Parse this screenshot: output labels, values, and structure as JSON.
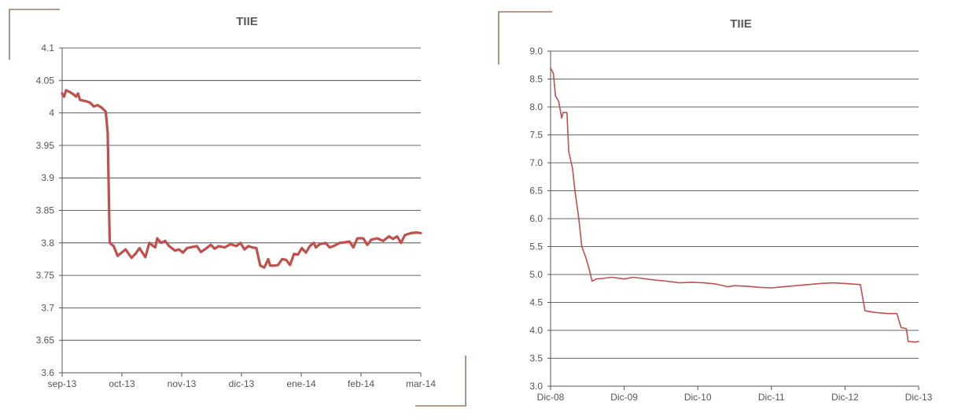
{
  "colors": {
    "series": "#c0504d",
    "corner_marks": "#9c7a66"
  },
  "chart_data": [
    {
      "type": "line",
      "title": "TIIE",
      "xlabel": "",
      "ylabel": "",
      "ylim": [
        3.6,
        4.1
      ],
      "y_ticks": [
        "3.6",
        "3.65",
        "3.7",
        "3.75",
        "3.8",
        "3.85",
        "3.9",
        "3.95",
        "4",
        "4.05",
        "4.1"
      ],
      "x_ticks": [
        "sep-13",
        "oct-13",
        "nov-13",
        "dic-13",
        "ene-14",
        "feb-14",
        "mar-14"
      ],
      "xlim": [
        "2013-09-01",
        "2014-03-01"
      ],
      "grid": true,
      "series": [
        {
          "color": "#c0504d",
          "points": [
            [
              "2013-09-01",
              4.03
            ],
            [
              "2013-09-02",
              4.025
            ],
            [
              "2013-09-03",
              4.035
            ],
            [
              "2013-09-05",
              4.032
            ],
            [
              "2013-09-07",
              4.028
            ],
            [
              "2013-09-08",
              4.025
            ],
            [
              "2013-09-09",
              4.03
            ],
            [
              "2013-09-10",
              4.02
            ],
            [
              "2013-09-13",
              4.018
            ],
            [
              "2013-09-15",
              4.016
            ],
            [
              "2013-09-17",
              4.01
            ],
            [
              "2013-09-19",
              4.012
            ],
            [
              "2013-09-21",
              4.008
            ],
            [
              "2013-09-22",
              4.005
            ],
            [
              "2013-09-23",
              4.002
            ],
            [
              "2013-09-24",
              3.97
            ],
            [
              "2013-09-25",
              3.8
            ],
            [
              "2013-09-27",
              3.795
            ],
            [
              "2013-09-29",
              3.78
            ],
            [
              "2013-10-01",
              3.785
            ],
            [
              "2013-10-03",
              3.79
            ],
            [
              "2013-10-06",
              3.777
            ],
            [
              "2013-10-08",
              3.783
            ],
            [
              "2013-10-10",
              3.792
            ],
            [
              "2013-10-13",
              3.778
            ],
            [
              "2013-10-15",
              3.8
            ],
            [
              "2013-10-17",
              3.795
            ],
            [
              "2013-10-18",
              3.793
            ],
            [
              "2013-10-19",
              3.807
            ],
            [
              "2013-10-21",
              3.8
            ],
            [
              "2013-10-23",
              3.803
            ],
            [
              "2013-10-25",
              3.795
            ],
            [
              "2013-10-28",
              3.788
            ],
            [
              "2013-10-30",
              3.79
            ],
            [
              "2013-11-01",
              3.785
            ],
            [
              "2013-11-03",
              3.792
            ],
            [
              "2013-11-06",
              3.794
            ],
            [
              "2013-11-08",
              3.795
            ],
            [
              "2013-11-10",
              3.786
            ],
            [
              "2013-11-12",
              3.79
            ],
            [
              "2013-11-15",
              3.797
            ],
            [
              "2013-11-17",
              3.791
            ],
            [
              "2013-11-19",
              3.795
            ],
            [
              "2013-11-22",
              3.793
            ],
            [
              "2013-11-25",
              3.798
            ],
            [
              "2013-11-28",
              3.795
            ],
            [
              "2013-11-30",
              3.8
            ],
            [
              "2013-12-02",
              3.79
            ],
            [
              "2013-12-04",
              3.795
            ],
            [
              "2013-12-06",
              3.793
            ],
            [
              "2013-12-08",
              3.792
            ],
            [
              "2013-12-10",
              3.765
            ],
            [
              "2013-12-12",
              3.762
            ],
            [
              "2013-12-14",
              3.775
            ],
            [
              "2013-12-15",
              3.765
            ],
            [
              "2013-12-17",
              3.765
            ],
            [
              "2013-12-19",
              3.766
            ],
            [
              "2013-12-21",
              3.775
            ],
            [
              "2013-12-23",
              3.774
            ],
            [
              "2013-12-25",
              3.766
            ],
            [
              "2013-12-27",
              3.783
            ],
            [
              "2013-12-29",
              3.782
            ],
            [
              "2013-12-31",
              3.792
            ],
            [
              "2014-01-02",
              3.785
            ],
            [
              "2014-01-04",
              3.795
            ],
            [
              "2014-01-06",
              3.8
            ],
            [
              "2014-01-07",
              3.793
            ],
            [
              "2014-01-09",
              3.798
            ],
            [
              "2014-01-12",
              3.8
            ],
            [
              "2014-01-14",
              3.793
            ],
            [
              "2014-01-16",
              3.795
            ],
            [
              "2014-01-19",
              3.8
            ],
            [
              "2014-01-22",
              3.801
            ],
            [
              "2014-01-24",
              3.802
            ],
            [
              "2014-01-26",
              3.793
            ],
            [
              "2014-01-28",
              3.807
            ],
            [
              "2014-01-31",
              3.807
            ],
            [
              "2014-02-02",
              3.797
            ],
            [
              "2014-02-04",
              3.805
            ],
            [
              "2014-02-07",
              3.807
            ],
            [
              "2014-02-10",
              3.803
            ],
            [
              "2014-02-13",
              3.81
            ],
            [
              "2014-02-15",
              3.806
            ],
            [
              "2014-02-17",
              3.81
            ],
            [
              "2014-02-19",
              3.8
            ],
            [
              "2014-02-21",
              3.812
            ],
            [
              "2014-02-24",
              3.815
            ],
            [
              "2014-02-27",
              3.816
            ],
            [
              "2014-03-01",
              3.815
            ]
          ]
        }
      ]
    },
    {
      "type": "line",
      "title": "TIIE",
      "xlabel": "",
      "ylabel": "",
      "ylim": [
        3.0,
        9.0
      ],
      "y_ticks": [
        "3.0",
        "3.5",
        "4.0",
        "4.5",
        "5.0",
        "5.5",
        "6.0",
        "6.5",
        "7.0",
        "7.5",
        "8.0",
        "8.5",
        "9.0"
      ],
      "x_ticks": [
        "Dic-08",
        "Dic-09",
        "Dic-10",
        "Dic-11",
        "Dic-12",
        "Dic-13"
      ],
      "xlim": [
        "2008-12-01",
        "2013-12-01"
      ],
      "grid": true,
      "series": [
        {
          "color": "#c0504d",
          "points": [
            [
              "2008-12-01",
              8.7
            ],
            [
              "2008-12-15",
              8.6
            ],
            [
              "2008-12-25",
              8.2
            ],
            [
              "2009-01-10",
              8.1
            ],
            [
              "2009-01-25",
              7.8
            ],
            [
              "2009-02-01",
              7.9
            ],
            [
              "2009-02-20",
              7.9
            ],
            [
              "2009-03-01",
              7.2
            ],
            [
              "2009-03-20",
              6.9
            ],
            [
              "2009-04-01",
              6.5
            ],
            [
              "2009-04-20",
              6.0
            ],
            [
              "2009-05-05",
              5.5
            ],
            [
              "2009-05-25",
              5.3
            ],
            [
              "2009-06-10",
              5.1
            ],
            [
              "2009-06-25",
              4.88
            ],
            [
              "2009-07-15",
              4.92
            ],
            [
              "2009-08-15",
              4.93
            ],
            [
              "2009-10-01",
              4.95
            ],
            [
              "2009-12-01",
              4.92
            ],
            [
              "2010-01-15",
              4.95
            ],
            [
              "2010-03-01",
              4.93
            ],
            [
              "2010-05-01",
              4.9
            ],
            [
              "2010-07-01",
              4.88
            ],
            [
              "2010-09-01",
              4.85
            ],
            [
              "2010-11-01",
              4.86
            ],
            [
              "2011-01-01",
              4.85
            ],
            [
              "2011-03-01",
              4.83
            ],
            [
              "2011-05-01",
              4.78
            ],
            [
              "2011-06-01",
              4.8
            ],
            [
              "2011-08-01",
              4.79
            ],
            [
              "2011-10-01",
              4.77
            ],
            [
              "2011-12-01",
              4.76
            ],
            [
              "2012-02-01",
              4.78
            ],
            [
              "2012-04-01",
              4.8
            ],
            [
              "2012-06-01",
              4.82
            ],
            [
              "2012-08-01",
              4.84
            ],
            [
              "2012-10-01",
              4.85
            ],
            [
              "2012-12-01",
              4.84
            ],
            [
              "2013-02-15",
              4.82
            ],
            [
              "2013-03-10",
              4.35
            ],
            [
              "2013-05-01",
              4.32
            ],
            [
              "2013-07-01",
              4.3
            ],
            [
              "2013-08-15",
              4.3
            ],
            [
              "2013-09-05",
              4.05
            ],
            [
              "2013-10-01",
              4.03
            ],
            [
              "2013-10-10",
              3.8
            ],
            [
              "2013-11-15",
              3.79
            ],
            [
              "2013-12-01",
              3.8
            ]
          ]
        }
      ]
    }
  ]
}
